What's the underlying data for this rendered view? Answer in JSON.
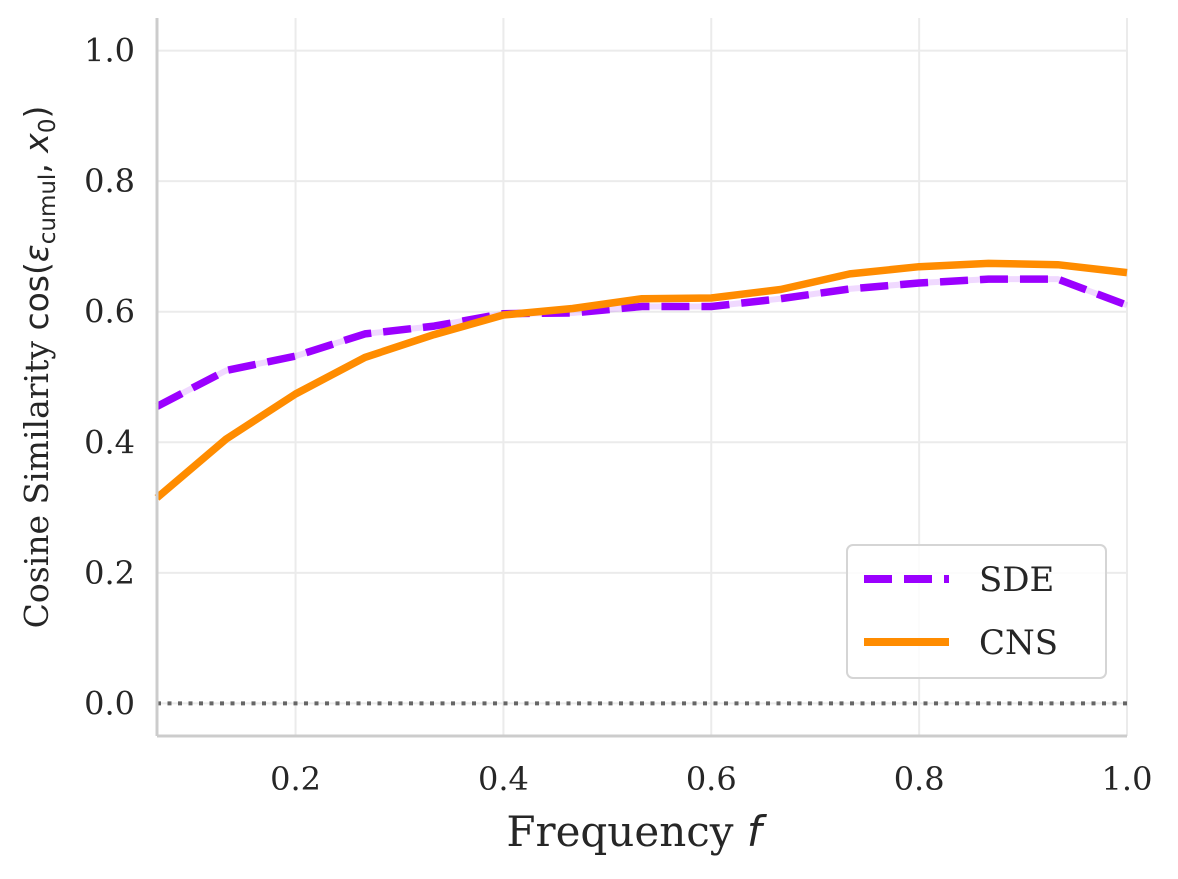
{
  "chart_data": {
    "type": "line",
    "title": "",
    "xlabel": "Frequency f",
    "ylabel": "Cosine Similarity cos(ε_cumul, x_0)",
    "xlim": [
      0.0667,
      1.0
    ],
    "ylim": [
      -0.05,
      1.05
    ],
    "xticks": [
      0.2,
      0.4,
      0.6,
      0.8,
      1.0
    ],
    "yticks": [
      0.0,
      0.2,
      0.4,
      0.6,
      0.8,
      1.0
    ],
    "xtick_labels": [
      "0.2",
      "0.4",
      "0.6",
      "0.8",
      "1.0"
    ],
    "ytick_labels": [
      "0.0",
      "0.2",
      "0.4",
      "0.6",
      "0.8",
      "1.0"
    ],
    "grid": true,
    "legend_position": "lower-right",
    "reference_line": {
      "y": 0.0,
      "style": "dotted",
      "color": "#666666"
    },
    "x": [
      0.0667,
      0.1333,
      0.2,
      0.2667,
      0.3333,
      0.4,
      0.4667,
      0.5333,
      0.6,
      0.6667,
      0.7333,
      0.8,
      0.8667,
      0.9333,
      1.0
    ],
    "series": [
      {
        "name": "SDE",
        "color": "#9b00ff",
        "style": "dashed",
        "values": [
          0.455,
          0.51,
          0.532,
          0.566,
          0.578,
          0.597,
          0.598,
          0.608,
          0.608,
          0.62,
          0.635,
          0.644,
          0.65,
          0.65,
          0.61
        ]
      },
      {
        "name": "CNS",
        "color": "#ff8c00",
        "style": "solid",
        "values": [
          0.315,
          0.405,
          0.474,
          0.53,
          0.565,
          0.595,
          0.605,
          0.62,
          0.621,
          0.634,
          0.658,
          0.669,
          0.674,
          0.672,
          0.66
        ]
      }
    ]
  }
}
